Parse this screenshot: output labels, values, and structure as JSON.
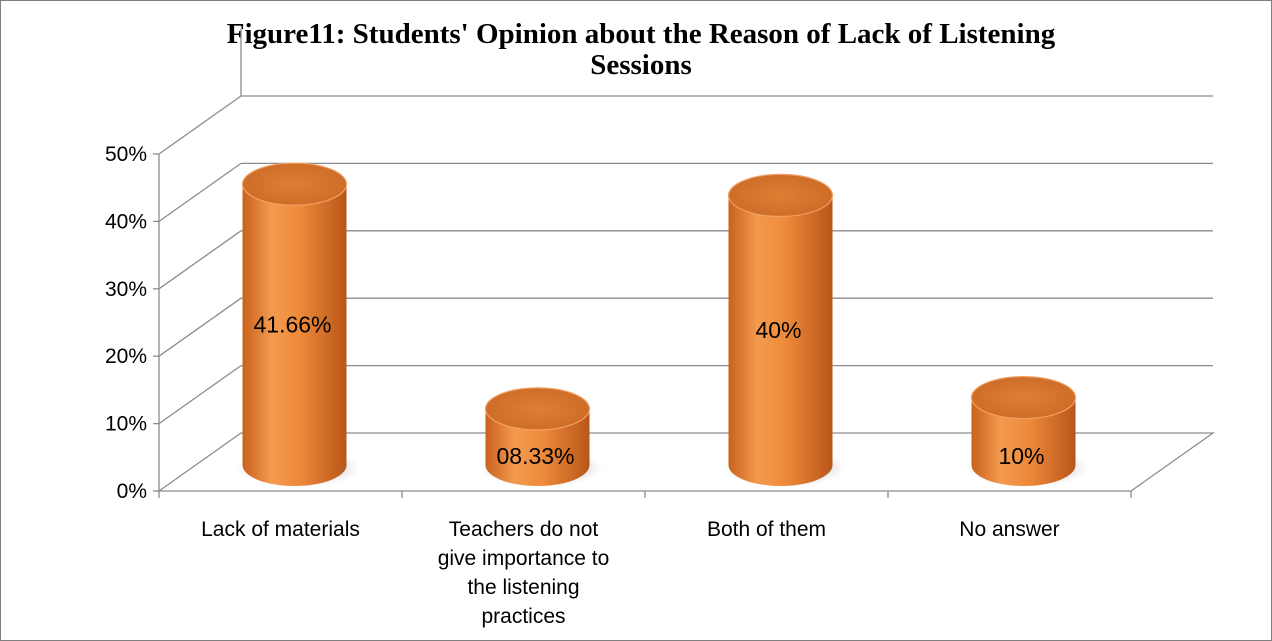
{
  "chart_data": {
    "type": "bar",
    "title_lines": [
      "Figure11: Students' Opinion about the Reason of Lack of Listening",
      "Sessions"
    ],
    "categories": [
      [
        "Lack of materials"
      ],
      [
        "Teachers do not",
        "give importance to",
        "the listening",
        "practices"
      ],
      [
        "Both of them"
      ],
      [
        "No answer"
      ]
    ],
    "values": [
      41.66,
      8.33,
      40,
      10
    ],
    "data_labels": [
      "41.66%",
      "08.33%",
      "40%",
      "10%"
    ],
    "y_ticks": [
      "0%",
      "10%",
      "20%",
      "30%",
      "40%",
      "50%"
    ],
    "ylim": [
      0,
      50
    ],
    "grid": true,
    "style": "3d-cylinder",
    "bar_color": "#e8883a"
  }
}
